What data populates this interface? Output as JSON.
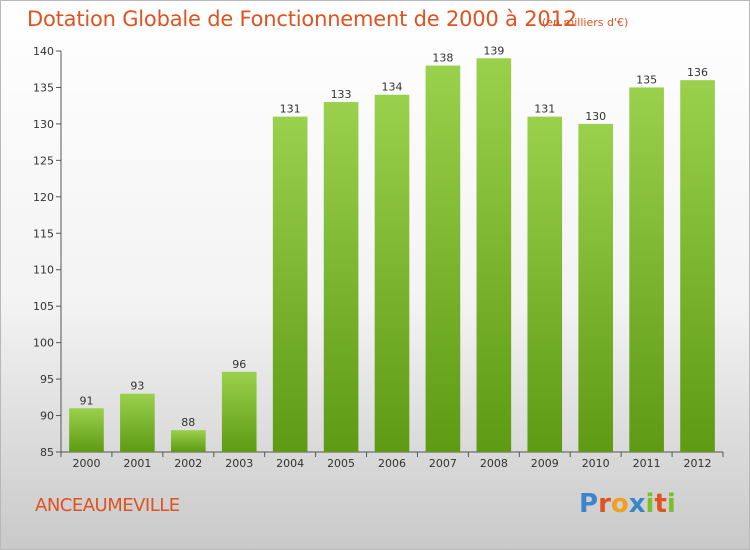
{
  "chart_data": {
    "type": "bar",
    "title": "Dotation Globale de Fonctionnement de 2000 à 2012",
    "subtitle": "(en milliers d'€)",
    "categories": [
      "2000",
      "2001",
      "2002",
      "2003",
      "2004",
      "2005",
      "2006",
      "2007",
      "2008",
      "2009",
      "2010",
      "2011",
      "2012"
    ],
    "values": [
      91,
      93,
      88,
      96,
      131,
      133,
      134,
      138,
      139,
      131,
      130,
      135,
      136
    ],
    "ylim": [
      85,
      140
    ],
    "yticks": [
      85,
      90,
      95,
      100,
      105,
      110,
      115,
      120,
      125,
      130,
      135,
      140
    ],
    "grid": false,
    "bar_color": "#7cbf2a"
  },
  "commune": "ANCEAUMEVILLE",
  "logo": {
    "letters": [
      "P",
      "r",
      "o",
      "x",
      "i",
      "t",
      "i"
    ],
    "colors": [
      "#3a86c8",
      "#e0521f",
      "#f0a020",
      "#3a86c8",
      "#7cbf2a",
      "#e0521f",
      "#7cbf2a"
    ]
  }
}
